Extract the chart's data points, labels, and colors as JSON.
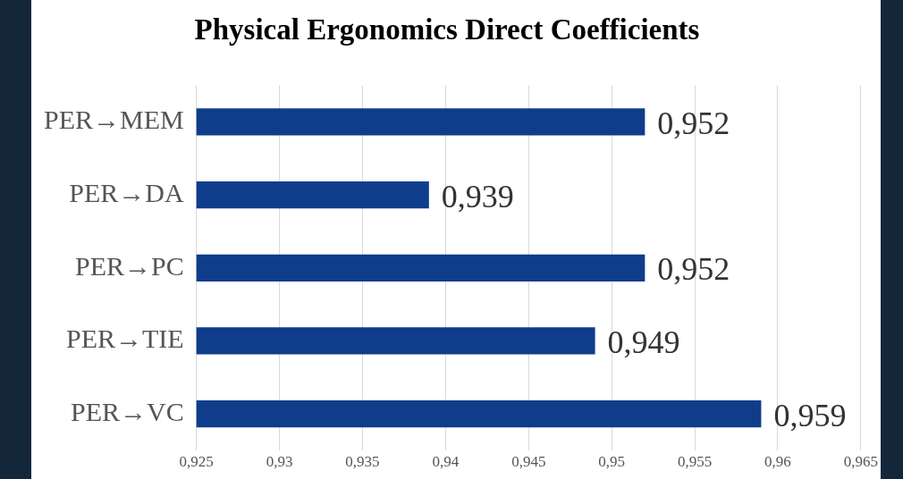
{
  "chart_data": {
    "type": "bar",
    "orientation": "horizontal",
    "title": "Physical Ergonomics Direct Coefficients",
    "categories": [
      "PER→MEM",
      "PER→DA",
      "PER→PC",
      "PER→TIE",
      "PER→VC"
    ],
    "values": [
      0.952,
      0.939,
      0.952,
      0.949,
      0.959
    ],
    "value_labels": [
      "0,952",
      "0,939",
      "0,952",
      "0,949",
      "0,959"
    ],
    "color": "#0f3d8c",
    "xlim": [
      0.925,
      0.965
    ],
    "xticks": [
      {
        "value": 0.925,
        "label": "0,925"
      },
      {
        "value": 0.93,
        "label": "0,93"
      },
      {
        "value": 0.935,
        "label": "0,935"
      },
      {
        "value": 0.94,
        "label": "0,94"
      },
      {
        "value": 0.945,
        "label": "0,945"
      },
      {
        "value": 0.95,
        "label": "0,95"
      },
      {
        "value": 0.955,
        "label": "0,955"
      },
      {
        "value": 0.96,
        "label": "0,96"
      },
      {
        "value": 0.965,
        "label": "0,965"
      }
    ],
    "grid": "x"
  }
}
